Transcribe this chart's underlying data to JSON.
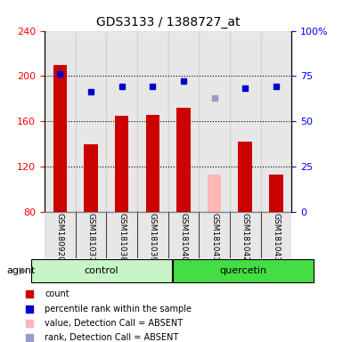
{
  "title": "GDS3133 / 1388727_at",
  "samples": [
    "GSM180920",
    "GSM181037",
    "GSM181038",
    "GSM181039",
    "GSM181040",
    "GSM181041",
    "GSM181042",
    "GSM181043"
  ],
  "bar_heights": [
    210,
    140,
    165,
    166,
    172,
    113,
    142,
    113
  ],
  "bar_absent": [
    false,
    false,
    false,
    false,
    false,
    true,
    false,
    false
  ],
  "rank_values": [
    202,
    186,
    191,
    191,
    196,
    181,
    189,
    191
  ],
  "rank_absent": [
    false,
    false,
    false,
    false,
    false,
    true,
    false,
    false
  ],
  "ylim_left": [
    80,
    240
  ],
  "ylim_right": [
    0,
    100
  ],
  "yticks_left": [
    80,
    120,
    160,
    200,
    240
  ],
  "yticks_right": [
    0,
    25,
    50,
    75,
    100
  ],
  "yticklabels_right": [
    "0",
    "25",
    "50",
    "75",
    "100%"
  ],
  "bar_color": "#cc0000",
  "bar_absent_color": "#ffb6b6",
  "rank_color": "#0000cc",
  "rank_absent_color": "#9999cc",
  "group_control": [
    "GSM180920",
    "GSM181037",
    "GSM181038",
    "GSM181039"
  ],
  "group_quercetin": [
    "GSM181040",
    "GSM181041",
    "GSM181042",
    "GSM181043"
  ],
  "control_bg": "#c8f5c8",
  "quercetin_bg": "#44cc44",
  "xlabel_bg": "#d0d0d0",
  "legend_items": [
    {
      "label": "count",
      "color": "#cc0000",
      "marker": "s"
    },
    {
      "label": "percentile rank within the sample",
      "color": "#0000cc",
      "marker": "s"
    },
    {
      "label": "value, Detection Call = ABSENT",
      "color": "#ffb6b6",
      "marker": "s"
    },
    {
      "label": "rank, Detection Call = ABSENT",
      "color": "#9999cc",
      "marker": "s"
    }
  ]
}
